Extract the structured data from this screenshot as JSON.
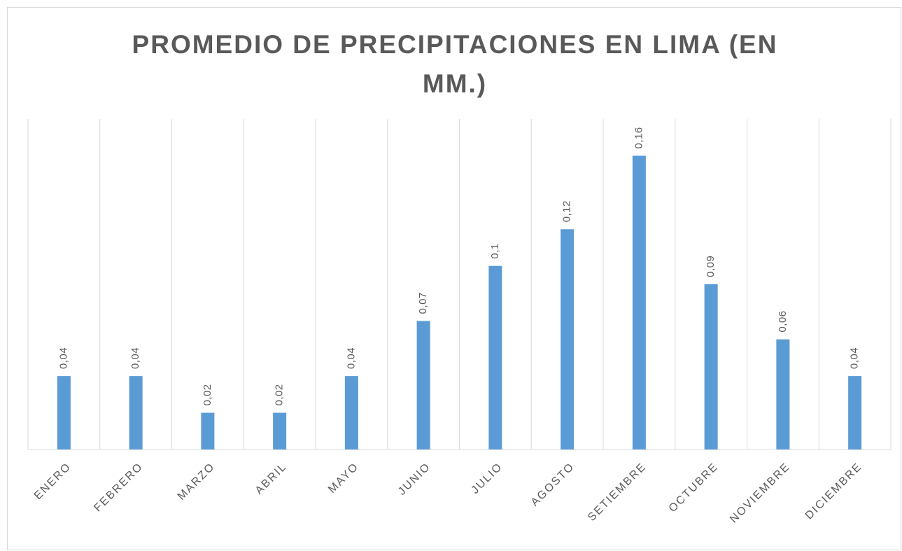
{
  "chart_data": {
    "type": "bar",
    "title": "PROMEDIO DE PRECIPITACIONES EN LIMA (EN MM.)",
    "categories": [
      "ENERO",
      "FEBRERO",
      "MARZO",
      "ABRIL",
      "MAYO",
      "JUNIO",
      "JULIO",
      "AGOSTO",
      "SETIEMBRE",
      "OCTUBRE",
      "NOVIEMBRE",
      "DICIEMBRE"
    ],
    "values": [
      0.04,
      0.04,
      0.02,
      0.02,
      0.04,
      0.07,
      0.1,
      0.12,
      0.16,
      0.09,
      0.06,
      0.04
    ],
    "value_labels": [
      "0,04",
      "0,04",
      "0,02",
      "0,02",
      "0,04",
      "0,07",
      "0,1",
      "0,12",
      "0,16",
      "0,09",
      "0,06",
      "0,04"
    ],
    "color": "#5b9bd5",
    "ylim": [
      0,
      0.18
    ],
    "grid": true
  }
}
